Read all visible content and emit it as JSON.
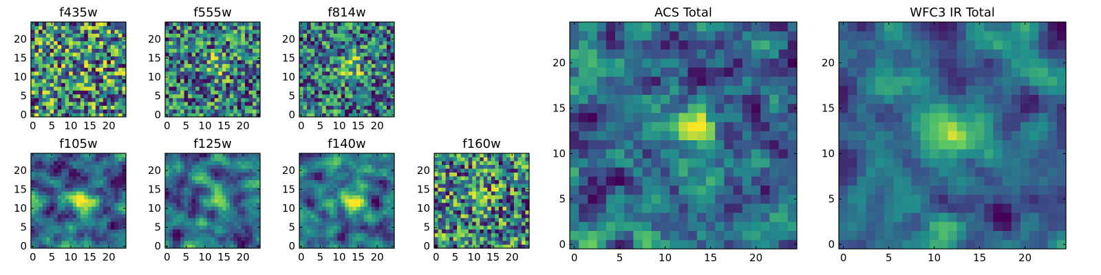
{
  "chart_data": [
    {
      "type": "heatmap",
      "title": "f435w",
      "grid_size": 25,
      "xlim": [
        0,
        24
      ],
      "ylim": [
        0,
        24
      ],
      "xticks": [
        0,
        5,
        10,
        15,
        20
      ],
      "yticks": [
        0,
        5,
        10,
        15,
        20
      ],
      "colormap": "viridis",
      "noise_level": "high",
      "source_peak": [
        13,
        13
      ],
      "source_strength": 0.05
    },
    {
      "type": "heatmap",
      "title": "f555w",
      "grid_size": 25,
      "xlim": [
        0,
        24
      ],
      "ylim": [
        0,
        24
      ],
      "xticks": [
        0,
        5,
        10,
        15,
        20
      ],
      "yticks": [
        0,
        5,
        10,
        15,
        20
      ],
      "colormap": "viridis",
      "noise_level": "high",
      "source_peak": [
        13,
        13
      ],
      "source_strength": 0.3
    },
    {
      "type": "heatmap",
      "title": "f814w",
      "grid_size": 25,
      "xlim": [
        0,
        24
      ],
      "ylim": [
        0,
        24
      ],
      "xticks": [
        0,
        5,
        10,
        15,
        20
      ],
      "yticks": [
        0,
        5,
        10,
        15,
        20
      ],
      "colormap": "viridis",
      "noise_level": "high",
      "source_peak": [
        13,
        13
      ],
      "source_strength": 0.35
    },
    {
      "type": "heatmap",
      "title": "f105w",
      "grid_size": 25,
      "xlim": [
        0,
        24
      ],
      "ylim": [
        0,
        24
      ],
      "xticks": [
        0,
        5,
        10,
        15,
        20
      ],
      "yticks": [
        0,
        5,
        10,
        15,
        20
      ],
      "colormap": "viridis",
      "noise_level": "smooth",
      "source_peak": [
        12,
        12
      ],
      "source_strength": 0.45
    },
    {
      "type": "heatmap",
      "title": "f125w",
      "grid_size": 25,
      "xlim": [
        0,
        24
      ],
      "ylim": [
        0,
        24
      ],
      "xticks": [
        0,
        5,
        10,
        15,
        20
      ],
      "yticks": [
        0,
        5,
        10,
        15,
        20
      ],
      "colormap": "viridis",
      "noise_level": "smooth",
      "source_peak": [
        13,
        13
      ],
      "source_strength": 0.4
    },
    {
      "type": "heatmap",
      "title": "f140w",
      "grid_size": 25,
      "xlim": [
        0,
        24
      ],
      "ylim": [
        0,
        24
      ],
      "xticks": [
        0,
        5,
        10,
        15,
        20
      ],
      "yticks": [
        0,
        5,
        10,
        15,
        20
      ],
      "colormap": "viridis",
      "noise_level": "smooth",
      "source_peak": [
        13,
        11
      ],
      "source_strength": 0.5
    },
    {
      "type": "heatmap",
      "title": "f160w",
      "grid_size": 25,
      "xlim": [
        0,
        24
      ],
      "ylim": [
        0,
        24
      ],
      "xticks": [
        0,
        5,
        10,
        15,
        20
      ],
      "yticks": [
        0,
        5,
        10,
        15,
        20
      ],
      "colormap": "viridis",
      "noise_level": "high",
      "source_peak": [
        13,
        13
      ],
      "source_strength": 0.15
    },
    {
      "type": "heatmap",
      "title": "ACS Total",
      "grid_size": 25,
      "xlim": [
        0,
        24
      ],
      "ylim": [
        0,
        24
      ],
      "xticks": [
        0,
        5,
        10,
        15,
        20
      ],
      "yticks": [
        0,
        5,
        10,
        15,
        20
      ],
      "colormap": "viridis",
      "noise_level": "medium",
      "source_peak": [
        13,
        13
      ],
      "source_strength": 0.5
    },
    {
      "type": "heatmap",
      "title": "WFC3 IR Total",
      "grid_size": 25,
      "xlim": [
        0,
        24
      ],
      "ylim": [
        0,
        24
      ],
      "xticks": [
        0,
        5,
        10,
        15,
        20
      ],
      "yticks": [
        0,
        5,
        10,
        15,
        20
      ],
      "colormap": "viridis",
      "noise_level": "smooth",
      "source_peak": [
        12,
        13
      ],
      "source_strength": 0.65
    }
  ],
  "colors": {
    "viridis_stops": [
      "#440154",
      "#3b528b",
      "#21918c",
      "#5ec962",
      "#fde725"
    ]
  }
}
